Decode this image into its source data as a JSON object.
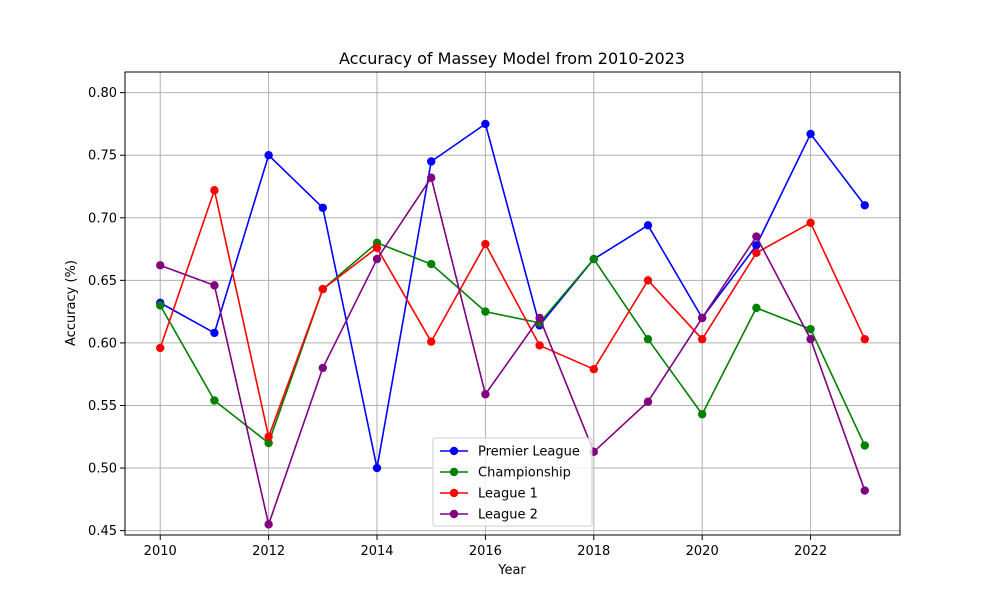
{
  "chart_data": {
    "type": "line",
    "title": "Accuracy of Massey Model from 2010-2023",
    "xlabel": "Year",
    "ylabel": "Accuracy (%)",
    "x": [
      2010,
      2011,
      2012,
      2013,
      2014,
      2015,
      2016,
      2017,
      2018,
      2019,
      2020,
      2021,
      2022,
      2023
    ],
    "xlim": [
      2009.35,
      2023.65
    ],
    "ylim": [
      0.4465,
      0.8165
    ],
    "xticks": [
      2010,
      2012,
      2014,
      2016,
      2018,
      2020,
      2022
    ],
    "xtick_labels": [
      "2010",
      "2012",
      "2014",
      "2016",
      "2018",
      "2020",
      "2022"
    ],
    "yticks": [
      0.45,
      0.5,
      0.55,
      0.6,
      0.65,
      0.7,
      0.75,
      0.8
    ],
    "ytick_labels": [
      "0.45",
      "0.50",
      "0.55",
      "0.60",
      "0.65",
      "0.70",
      "0.75",
      "0.80"
    ],
    "grid": true,
    "legend_position": "bottom-center",
    "series": [
      {
        "name": "Premier League",
        "color": "#0000ff",
        "values": [
          0.632,
          0.608,
          0.75,
          0.708,
          0.5,
          0.745,
          0.775,
          0.614,
          0.667,
          0.694,
          0.62,
          0.678,
          0.767,
          0.71
        ]
      },
      {
        "name": "Championship",
        "color": "#008000",
        "values": [
          0.63,
          0.554,
          0.52,
          0.643,
          0.68,
          0.663,
          0.625,
          0.616,
          0.667,
          0.603,
          0.543,
          0.628,
          0.611,
          0.518
        ]
      },
      {
        "name": "League 1",
        "color": "#ff0000",
        "values": [
          0.596,
          0.722,
          0.525,
          0.643,
          0.676,
          0.601,
          0.679,
          0.598,
          0.579,
          0.65,
          0.603,
          0.672,
          0.696,
          0.603
        ]
      },
      {
        "name": "League 2",
        "color": "#800080",
        "values": [
          0.662,
          0.646,
          0.455,
          0.58,
          0.667,
          0.732,
          0.559,
          0.62,
          0.513,
          0.553,
          0.62,
          0.685,
          0.603,
          0.482
        ]
      }
    ]
  }
}
